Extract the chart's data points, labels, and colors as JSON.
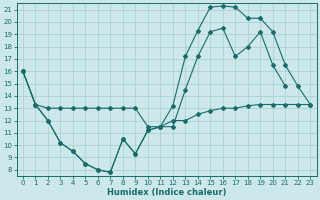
{
  "xlabel": "Humidex (Indice chaleur)",
  "bg_color": "#cce8ea",
  "line_color": "#1a6b6b",
  "grid_color": "#a8cccc",
  "xlim": [
    -0.5,
    23.5
  ],
  "ylim": [
    7.5,
    21.5
  ],
  "xticks": [
    0,
    1,
    2,
    3,
    4,
    5,
    6,
    7,
    8,
    9,
    10,
    11,
    12,
    13,
    14,
    15,
    16,
    17,
    18,
    19,
    20,
    21,
    22,
    23
  ],
  "yticks": [
    8,
    9,
    10,
    11,
    12,
    13,
    14,
    15,
    16,
    17,
    18,
    19,
    20,
    21
  ],
  "series1_x": [
    0,
    1,
    2,
    3,
    4,
    5,
    6,
    7,
    8,
    9,
    10,
    11,
    12,
    13,
    14,
    15,
    16,
    17,
    18,
    19,
    20,
    21,
    22,
    23
  ],
  "series1_y": [
    16,
    13.3,
    13.0,
    13.0,
    13.0,
    13.0,
    13.0,
    13.0,
    13.0,
    13.0,
    11.5,
    11.5,
    12.0,
    12.0,
    12.5,
    12.8,
    13.0,
    13.0,
    13.2,
    13.3,
    13.3,
    13.3,
    13.3,
    13.3
  ],
  "series2_x": [
    0,
    1,
    2,
    3,
    4,
    5,
    6,
    7,
    8,
    9,
    10,
    11,
    12,
    13,
    14,
    15,
    16,
    17,
    18,
    19,
    20,
    21
  ],
  "series2_y": [
    16,
    13.3,
    12.0,
    10.2,
    9.5,
    8.5,
    8.0,
    7.8,
    10.5,
    9.3,
    11.2,
    11.5,
    11.5,
    14.5,
    17.2,
    19.2,
    19.5,
    17.2,
    18.0,
    19.2,
    16.5,
    14.8
  ],
  "series3_x": [
    0,
    1,
    2,
    3,
    4,
    5,
    6,
    7,
    8,
    9,
    10,
    11,
    12,
    13,
    14,
    15,
    16,
    17,
    18,
    19,
    20,
    21,
    22,
    23
  ],
  "series3_y": [
    16,
    13.3,
    12.0,
    10.2,
    9.5,
    8.5,
    8.0,
    7.8,
    10.5,
    9.3,
    11.2,
    11.5,
    13.2,
    17.2,
    19.3,
    21.2,
    21.3,
    21.2,
    20.3,
    20.3,
    19.2,
    16.5,
    14.8,
    13.3
  ]
}
